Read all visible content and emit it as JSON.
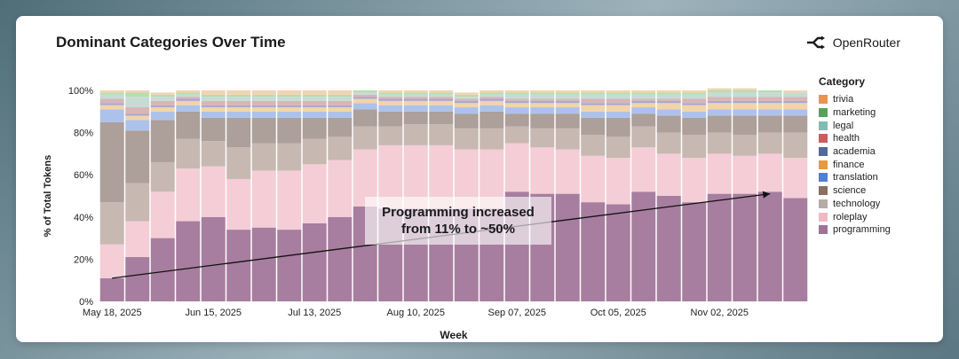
{
  "title": "Dominant Categories Over Time",
  "brand": "OpenRouter",
  "annotation": {
    "line1": "Programming increased",
    "line2": "from 11% to ~50%"
  },
  "legend_title": "Category",
  "chart_data": {
    "type": "bar",
    "stacked": true,
    "title": "Dominant Categories Over Time",
    "xlabel": "Week",
    "ylabel": "% of Total Tokens",
    "ylim": [
      0,
      100
    ],
    "yticks": [
      "0%",
      "20%",
      "40%",
      "60%",
      "80%",
      "100%"
    ],
    "xticks": [
      {
        "index": 0,
        "label": "May 18, 2025"
      },
      {
        "index": 4,
        "label": "Jun 15, 2025"
      },
      {
        "index": 8,
        "label": "Jul 13, 2025"
      },
      {
        "index": 12,
        "label": "Aug 10, 2025"
      },
      {
        "index": 16,
        "label": "Sep 07, 2025"
      },
      {
        "index": 20,
        "label": "Oct 05, 2025"
      },
      {
        "index": 24,
        "label": "Nov 02, 2025"
      }
    ],
    "trend_line": {
      "from_index": 0,
      "from_value": 11,
      "to_index": 26,
      "to_value": 51
    },
    "series": [
      {
        "name": "programming",
        "color": "#a77e9f",
        "values": [
          11,
          21,
          30,
          38,
          40,
          34,
          35,
          34,
          37,
          40,
          45,
          44,
          44,
          44,
          44,
          44,
          52,
          51,
          51,
          47,
          46,
          52,
          50,
          47,
          51,
          51,
          52,
          49
        ]
      },
      {
        "name": "roleplay",
        "color": "#f4cdd6",
        "values": [
          16,
          17,
          22,
          25,
          24,
          24,
          27,
          28,
          28,
          27,
          27,
          30,
          30,
          30,
          28,
          28,
          23,
          22,
          21,
          22,
          22,
          21,
          20,
          21,
          19,
          18,
          18,
          19
        ]
      },
      {
        "name": "technology",
        "color": "#c7b8b2",
        "values": [
          20,
          18,
          14,
          14,
          12,
          15,
          13,
          13,
          12,
          11,
          11,
          9,
          10,
          10,
          10,
          10,
          8,
          9,
          10,
          10,
          10,
          10,
          10,
          11,
          10,
          10,
          10,
          12
        ]
      },
      {
        "name": "science",
        "color": "#ad9f99",
        "values": [
          38,
          25,
          20,
          13,
          11,
          14,
          12,
          12,
          10,
          9,
          8,
          7,
          6,
          6,
          7,
          8,
          6,
          7,
          7,
          8,
          9,
          6,
          8,
          8,
          8,
          9,
          8,
          8
        ]
      },
      {
        "name": "translation",
        "color": "#adc2ea",
        "values": [
          6,
          5,
          4,
          3,
          3,
          3,
          3,
          3,
          3,
          3,
          3,
          3,
          3,
          3,
          3,
          3,
          3,
          3,
          3,
          3,
          3,
          3,
          3,
          3,
          3,
          3,
          3,
          3
        ]
      },
      {
        "name": "finance",
        "color": "#f2d4a8",
        "values": [
          2,
          2,
          2,
          2,
          2,
          2,
          2,
          2,
          2,
          2,
          2,
          2,
          2,
          2,
          2,
          2,
          2,
          2,
          2,
          3,
          3,
          2,
          3,
          3,
          3,
          3,
          3,
          3
        ]
      },
      {
        "name": "academia",
        "color": "#a9a9cf",
        "values": [
          1,
          1,
          1,
          1,
          1,
          1,
          1,
          1,
          1,
          1,
          1,
          1,
          1,
          1,
          1,
          1,
          1,
          1,
          1,
          1,
          1,
          1,
          1,
          1,
          1,
          1,
          1,
          1
        ]
      },
      {
        "name": "health",
        "color": "#d9b5b5",
        "values": [
          2,
          3,
          2,
          1,
          2,
          2,
          2,
          2,
          2,
          2,
          1,
          1,
          1,
          1,
          1,
          1,
          1,
          1,
          1,
          2,
          2,
          1,
          1,
          2,
          2,
          2,
          2,
          2
        ]
      },
      {
        "name": "legal",
        "color": "#c7dbd5",
        "values": [
          2,
          5,
          2,
          1,
          2,
          2,
          2,
          2,
          2,
          2,
          1,
          1,
          1,
          1,
          1,
          1,
          2,
          2,
          2,
          2,
          2,
          2,
          2,
          2,
          2,
          2,
          2,
          2
        ]
      },
      {
        "name": "marketing",
        "color": "#b8dcae",
        "values": [
          1,
          2,
          1,
          1,
          1,
          1,
          1,
          1,
          1,
          1,
          1,
          1,
          1,
          1,
          1,
          1,
          1,
          1,
          1,
          1,
          1,
          1,
          1,
          1,
          1,
          1,
          1,
          0
        ]
      },
      {
        "name": "trivia",
        "color": "#f3d2b1",
        "values": [
          1,
          1,
          1,
          1,
          2,
          2,
          2,
          2,
          2,
          2,
          0,
          1,
          1,
          1,
          1,
          1,
          1,
          1,
          1,
          1,
          1,
          1,
          1,
          1,
          1,
          1,
          0,
          1
        ]
      }
    ],
    "legend": [
      {
        "name": "trivia",
        "color": "#e8954b"
      },
      {
        "name": "marketing",
        "color": "#5aa05a"
      },
      {
        "name": "legal",
        "color": "#7fbdb3"
      },
      {
        "name": "health",
        "color": "#cb5d5d"
      },
      {
        "name": "academia",
        "color": "#4f6a9c"
      },
      {
        "name": "finance",
        "color": "#e59b3f"
      },
      {
        "name": "translation",
        "color": "#5080d6"
      },
      {
        "name": "science",
        "color": "#8a6f63"
      },
      {
        "name": "technology",
        "color": "#b5aca7"
      },
      {
        "name": "roleplay",
        "color": "#f2b8c3"
      },
      {
        "name": "programming",
        "color": "#9e7497"
      }
    ]
  }
}
